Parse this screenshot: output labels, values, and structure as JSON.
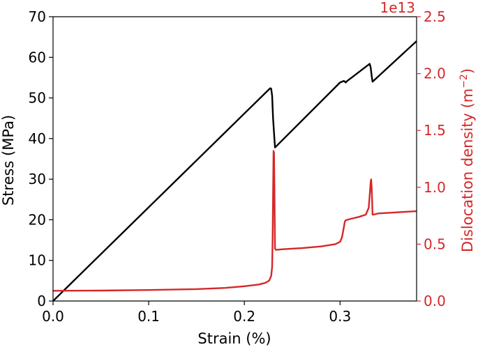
{
  "chart_data": {
    "type": "line",
    "x_axis": {
      "label": "Strain (%)",
      "lim": [
        0.0,
        0.38
      ],
      "ticks": [
        0.0,
        0.1,
        0.2,
        0.3
      ],
      "tick_labels": [
        "0.0",
        "0.1",
        "0.2",
        "0.3"
      ]
    },
    "y_left": {
      "label": "Stress (MPa)",
      "lim": [
        0,
        70
      ],
      "ticks": [
        0,
        10,
        20,
        30,
        40,
        50,
        60,
        70
      ],
      "tick_labels": [
        "0",
        "10",
        "20",
        "30",
        "40",
        "50",
        "60",
        "70"
      ],
      "color": "#000000"
    },
    "y_right": {
      "label_text": "Dislocation density (m",
      "label_sup": "−2",
      "label_close": ")",
      "offset_text": "1e13",
      "lim": [
        0.0,
        2.5
      ],
      "ticks": [
        0.0,
        0.5,
        1.0,
        1.5,
        2.0,
        2.5
      ],
      "tick_labels": [
        "0.0",
        "0.5",
        "1.0",
        "1.5",
        "2.0",
        "2.5"
      ],
      "color": "#d62728"
    },
    "grid": false,
    "series": [
      {
        "axis": "left",
        "color": "#000000",
        "x": [
          0.0,
          0.227,
          0.228,
          0.229,
          0.23,
          0.232,
          0.3,
          0.304,
          0.306,
          0.307,
          0.331,
          0.332,
          0.333,
          0.334,
          0.38
        ],
        "y": [
          0.0,
          52.4,
          52.3,
          50.5,
          45.0,
          37.8,
          53.8,
          54.2,
          53.8,
          54.1,
          58.4,
          57.5,
          55.5,
          54.0,
          64.0
        ]
      },
      {
        "axis": "right",
        "color": "#d62728",
        "x": [
          0.0,
          0.05,
          0.1,
          0.15,
          0.18,
          0.2,
          0.215,
          0.222,
          0.226,
          0.228,
          0.229,
          0.2295,
          0.2305,
          0.231,
          0.2315,
          0.232,
          0.233,
          0.24,
          0.26,
          0.28,
          0.295,
          0.3,
          0.302,
          0.304,
          0.305,
          0.306,
          0.31,
          0.32,
          0.327,
          0.33,
          0.331,
          0.332,
          0.3325,
          0.333,
          0.334,
          0.335,
          0.34,
          0.36,
          0.38
        ],
        "y": [
          0.09,
          0.092,
          0.097,
          0.105,
          0.115,
          0.13,
          0.145,
          0.16,
          0.18,
          0.22,
          0.3,
          0.55,
          1.32,
          1.3,
          0.9,
          0.46,
          0.45,
          0.455,
          0.465,
          0.48,
          0.5,
          0.52,
          0.56,
          0.65,
          0.7,
          0.71,
          0.72,
          0.74,
          0.76,
          0.82,
          0.93,
          1.05,
          1.07,
          1.0,
          0.76,
          0.76,
          0.77,
          0.78,
          0.79
        ]
      }
    ]
  }
}
